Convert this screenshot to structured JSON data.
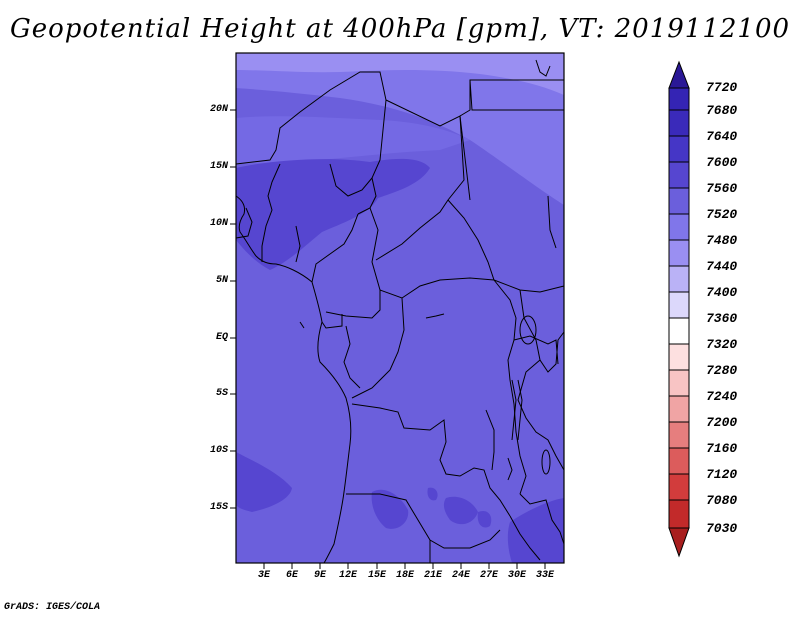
{
  "title": "Geopotential Height at 400hPa [gpm], VT: 2019112100",
  "credit": "GrADS: IGES/COLA",
  "colors": {
    "base_field": "#6b5fdc",
    "lighter_field": "#8076ea",
    "lightest_field": "#9a8ff2",
    "darker_field": "#5646d0",
    "border": "#000000"
  },
  "map": {
    "lat_ticks": [
      "20N",
      "15N",
      "10N",
      "5N",
      "EQ",
      "5S",
      "10S",
      "15S"
    ],
    "lon_ticks": [
      "3E",
      "6E",
      "9E",
      "12E",
      "15E",
      "18E",
      "21E",
      "24E",
      "27E",
      "30E",
      "33E"
    ]
  },
  "colorbar": {
    "levels": [
      "7720",
      "7680",
      "7640",
      "7600",
      "7560",
      "7520",
      "7480",
      "7440",
      "7400",
      "7360",
      "7320",
      "7280",
      "7240",
      "7200",
      "7160",
      "7120",
      "7080",
      "7030"
    ],
    "colors": [
      "#2a1896",
      "#3424b4",
      "#4536c6",
      "#5646d0",
      "#6b5fdc",
      "#8076ea",
      "#9a8ff2",
      "#bab2f6",
      "#dcd8fb",
      "#ffffff",
      "#fde0e0",
      "#f8c4c4",
      "#f0a4a4",
      "#e67e7e",
      "#dc5c5c",
      "#d23c3c",
      "#c22a2a",
      "#a81e1e"
    ]
  }
}
